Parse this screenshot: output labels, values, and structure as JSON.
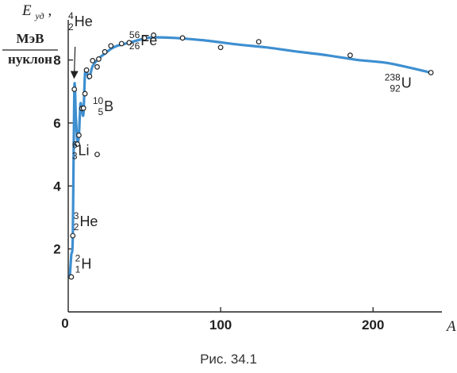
{
  "figure": {
    "caption": "Рис. 34.1",
    "y_label_symbol": "E",
    "y_label_subscript": "уд",
    "y_label_comma": ",",
    "y_unit_numerator": "МэВ",
    "y_unit_denominator": "нуклон",
    "x_label": "A",
    "origin_label": "0"
  },
  "chart_data": {
    "type": "line",
    "title": "",
    "xlabel": "A",
    "ylabel": "Eуд, МэВ/нуклон",
    "xlim": [
      0,
      240
    ],
    "ylim": [
      0,
      9.2
    ],
    "x_ticks": [
      100,
      200
    ],
    "y_ticks": [
      2,
      4,
      6,
      8
    ],
    "grid": false,
    "line_color": "#3e8fd0",
    "curve": [
      [
        1,
        1.1
      ],
      [
        2,
        1.8
      ],
      [
        3,
        2.45
      ],
      [
        4,
        7.1
      ],
      [
        5,
        6.2
      ],
      [
        6,
        5.4
      ],
      [
        7,
        5.6
      ],
      [
        8,
        6.6
      ],
      [
        9,
        6.4
      ],
      [
        10,
        6.3
      ],
      [
        11,
        7.55
      ],
      [
        12,
        7.7
      ],
      [
        13,
        7.45
      ],
      [
        14,
        7.45
      ],
      [
        16,
        7.8
      ],
      [
        20,
        8.05
      ],
      [
        24,
        8.2
      ],
      [
        28,
        8.35
      ],
      [
        32,
        8.45
      ],
      [
        40,
        8.55
      ],
      [
        50,
        8.68
      ],
      [
        56,
        8.72
      ],
      [
        70,
        8.7
      ],
      [
        90,
        8.62
      ],
      [
        110,
        8.5
      ],
      [
        130,
        8.4
      ],
      [
        150,
        8.27
      ],
      [
        170,
        8.15
      ],
      [
        190,
        8.0
      ],
      [
        210,
        7.9
      ],
      [
        238,
        7.6
      ]
    ],
    "points": [
      {
        "x": 2,
        "y": 1.11
      },
      {
        "x": 3,
        "y": 2.42
      },
      {
        "x": 4,
        "y": 7.07
      },
      {
        "x": 6,
        "y": 5.33
      },
      {
        "x": 7,
        "y": 5.61
      },
      {
        "x": 9,
        "y": 6.46
      },
      {
        "x": 10,
        "y": 6.47
      },
      {
        "x": 11,
        "y": 6.93
      },
      {
        "x": 12,
        "y": 7.68
      },
      {
        "x": 14,
        "y": 7.48
      },
      {
        "x": 16,
        "y": 7.98
      },
      {
        "x": 19,
        "y": 7.78
      },
      {
        "x": 20,
        "y": 8.03
      },
      {
        "x": 24,
        "y": 8.26
      },
      {
        "x": 28,
        "y": 8.45
      },
      {
        "x": 35,
        "y": 8.52
      },
      {
        "x": 40,
        "y": 8.55
      },
      {
        "x": 50,
        "y": 8.7
      },
      {
        "x": 56,
        "y": 8.79
      },
      {
        "x": 75,
        "y": 8.7
      },
      {
        "x": 100,
        "y": 8.4
      },
      {
        "x": 125,
        "y": 8.58
      },
      {
        "x": 185,
        "y": 8.15
      },
      {
        "x": 238,
        "y": 7.6
      },
      {
        "x": 19,
        "y": 5.0
      }
    ],
    "annotations": [
      {
        "symbol": "H",
        "mass": "2",
        "charge": "1",
        "x": 8,
        "y": 1.4,
        "size": "small"
      },
      {
        "symbol": "He",
        "mass": "3",
        "charge": "2",
        "x": 7,
        "y": 2.75,
        "size": "small"
      },
      {
        "symbol": "Li",
        "mass": "6",
        "charge": "3",
        "x": 6,
        "y": 5.0,
        "size": "small"
      },
      {
        "symbol": "He",
        "mass": "4",
        "charge": "2",
        "x": 3.5,
        "y": 9.1,
        "size": "small"
      },
      {
        "symbol": "B",
        "mass": "10",
        "charge": "5",
        "x": 23,
        "y": 6.4,
        "size": "small"
      },
      {
        "symbol": "Fe",
        "mass": "56",
        "charge": "26",
        "x": 47,
        "y": 8.5,
        "size": "small"
      },
      {
        "symbol": "U",
        "mass": "238",
        "charge": "92",
        "x": 218,
        "y": 7.15,
        "size": "small"
      }
    ],
    "arrow": {
      "from": [
        4.5,
        8.42
      ],
      "to": [
        3.9,
        7.45
      ]
    }
  }
}
